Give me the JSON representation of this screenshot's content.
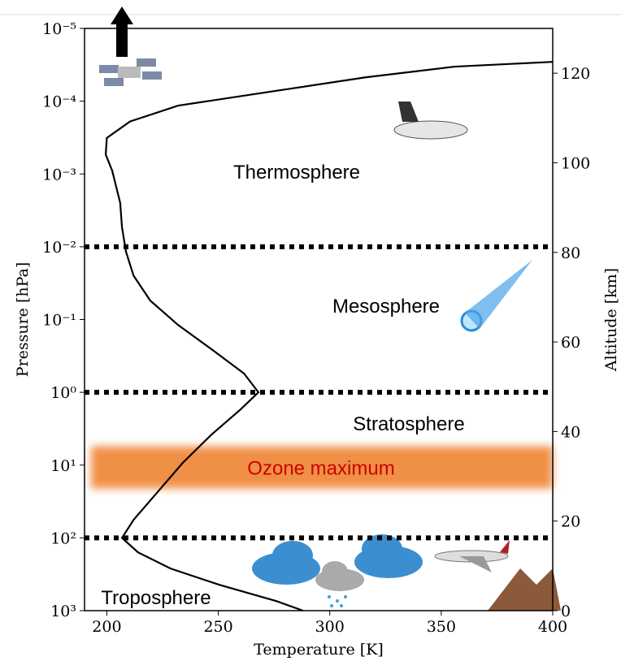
{
  "chart_data": {
    "type": "line",
    "log_y": true,
    "xlabel": "Temperature [K]",
    "ylabel": "Pressure [hPa]",
    "y2label": "Altitude [km]",
    "xlim": [
      190,
      400
    ],
    "xticks": [
      200,
      250,
      300,
      350,
      400
    ],
    "ylim": [
      1e-05,
      1000
    ],
    "yticks": [
      {
        "value": 1e-05,
        "label": "10⁻⁵"
      },
      {
        "value": 0.0001,
        "label": "10⁻⁴"
      },
      {
        "value": 0.001,
        "label": "10⁻³"
      },
      {
        "value": 0.01,
        "label": "10⁻²"
      },
      {
        "value": 0.1,
        "label": "10⁻¹"
      },
      {
        "value": 1,
        "label": "10⁰"
      },
      {
        "value": 10,
        "label": "10¹"
      },
      {
        "value": 100,
        "label": "10²"
      },
      {
        "value": 1000,
        "label": "10³"
      }
    ],
    "y2lim": [
      0,
      130
    ],
    "y2ticks": [
      0,
      20,
      40,
      60,
      80,
      100,
      120
    ],
    "color": "#000000",
    "x": [
      288,
      276,
      250.5,
      228.6,
      214,
      206.8,
      212,
      223,
      234,
      247,
      259.6,
      268,
      261.5,
      247,
      232,
      219.5,
      212,
      208.6,
      206.8,
      206,
      202.4,
      199.5,
      200,
      210.4,
      232,
      276,
      316,
      356,
      400
    ],
    "values": [
      1000,
      738,
      442,
      264,
      158,
      100,
      56.5,
      23,
      9.35,
      3.8,
      1.76,
      1,
      0.55,
      0.256,
      0.119,
      0.055,
      0.025,
      0.0117,
      0.0054,
      0.0025,
      0.0009,
      0.00054,
      0.00032,
      0.00019,
      0.000115,
      7.2e-05,
      4.7e-05,
      3.35e-05,
      2.88e-05
    ],
    "hlines": [
      0.01,
      1,
      100
    ],
    "band": {
      "label": "Ozone maximum",
      "ylim": [
        5.5,
        21
      ],
      "color": "#f08a3c",
      "label_color": "#cc0000"
    },
    "annotations": [
      "Thermosphere",
      "Mesosphere",
      "Stratosphere",
      "Troposphere"
    ]
  }
}
